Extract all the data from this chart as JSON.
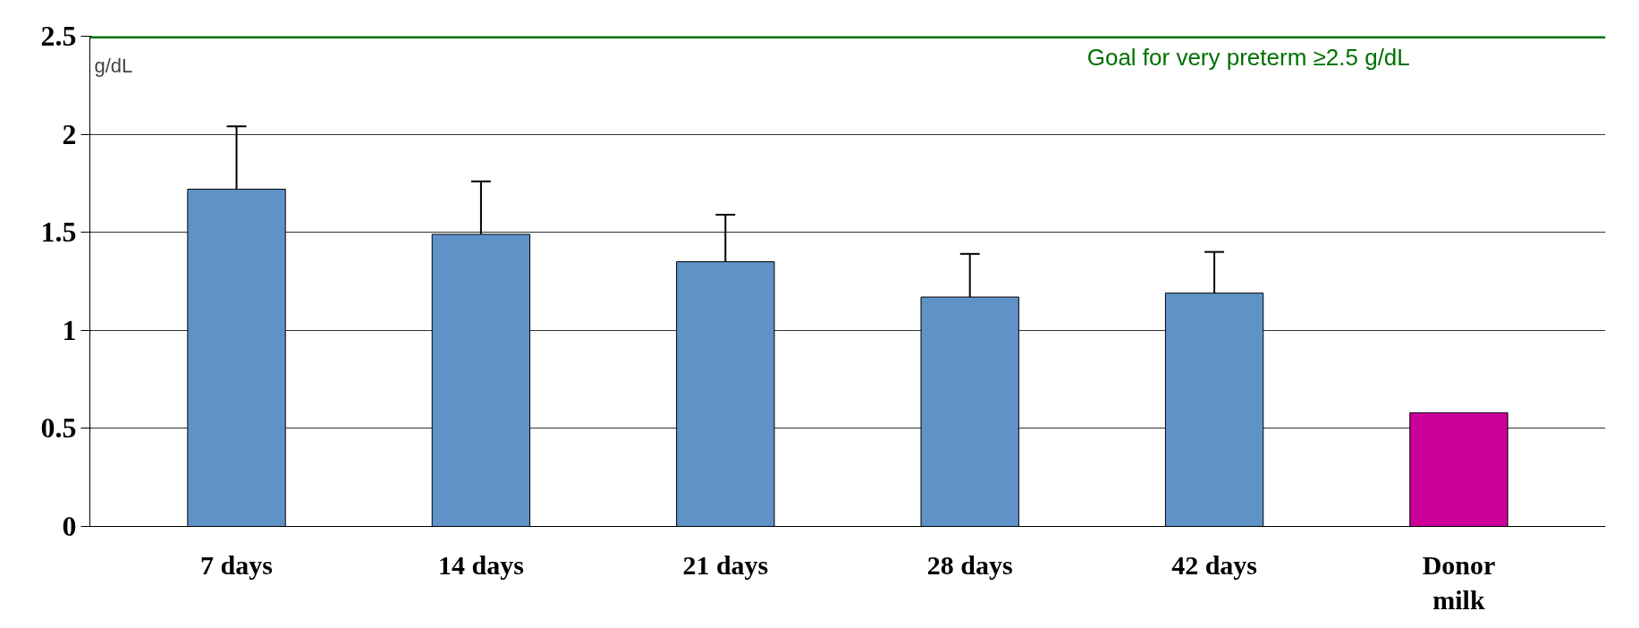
{
  "chart_data": {
    "type": "bar",
    "ylabel": "g/dL",
    "categories": [
      "7 days",
      "14 days",
      "21 days",
      "28 days",
      "42 days",
      "Donor milk"
    ],
    "values": [
      1.72,
      1.49,
      1.35,
      1.17,
      1.19,
      0.58
    ],
    "colors": [
      "#5f93c8",
      "#5f93c8",
      "#5f93c8",
      "#5f93c8",
      "#5f93c8",
      "#cc0099"
    ],
    "errors": [
      0.32,
      0.27,
      0.24,
      0.22,
      0.21,
      null
    ],
    "ylim": [
      0,
      2.5
    ],
    "yticks": [
      0,
      0.5,
      1,
      1.5,
      2,
      2.5
    ],
    "grid": "y",
    "ref_lines": [
      {
        "axis": "y",
        "value": 2.5,
        "label": "Goal for very preterm ≥2.5 g/dL",
        "color": "#007000"
      }
    ]
  }
}
